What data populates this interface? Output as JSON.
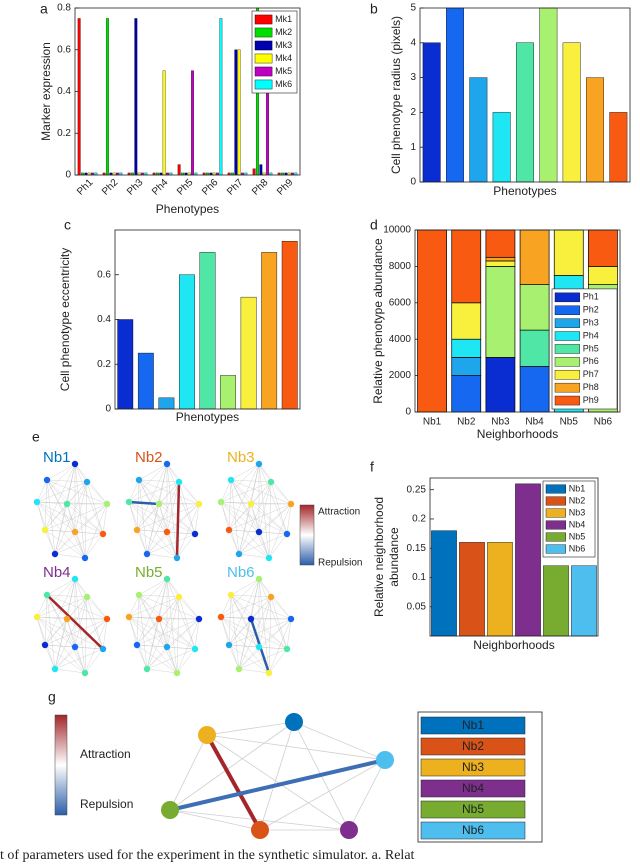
{
  "chart_data": [
    {
      "type": "bar",
      "ylabel": "Marker expression",
      "xlabel": "Phenotypes",
      "categories": [
        "Ph1",
        "Ph2",
        "Ph3",
        "Ph4",
        "Ph5",
        "Ph6",
        "Ph7",
        "Ph8",
        "Ph9"
      ],
      "series": [
        {
          "name": "Mk1",
          "color": "#ff0000",
          "values": [
            0.75,
            0.01,
            0.01,
            0.01,
            0.05,
            0.01,
            0.01,
            0.03,
            0.01
          ]
        },
        {
          "name": "Mk2",
          "color": "#00e000",
          "values": [
            0.01,
            0.75,
            0.01,
            0.01,
            0.01,
            0.01,
            0.01,
            0.8,
            0.01
          ]
        },
        {
          "name": "Mk3",
          "color": "#0000b0",
          "values": [
            0.01,
            0.01,
            0.75,
            0.01,
            0.01,
            0.01,
            0.6,
            0.05,
            0.01
          ]
        },
        {
          "name": "Mk4",
          "color": "#ffff00",
          "values": [
            0.01,
            0.01,
            0.01,
            0.5,
            0.01,
            0.01,
            0.6,
            0.01,
            0.01
          ]
        },
        {
          "name": "Mk5",
          "color": "#c000c0",
          "values": [
            0.01,
            0.01,
            0.01,
            0.01,
            0.5,
            0.01,
            0.01,
            0.75,
            0.01
          ]
        },
        {
          "name": "Mk6",
          "color": "#00ffff",
          "values": [
            0.01,
            0.01,
            0.01,
            0.01,
            0.01,
            0.75,
            0.01,
            0.01,
            0.01
          ]
        }
      ],
      "ylim": [
        0,
        0.8
      ],
      "yticks": [
        0,
        0.2,
        0.4,
        0.6,
        0.8
      ],
      "legend": "upper right"
    },
    {
      "type": "bar",
      "ylabel": "Cell phenotype radius (pixels)",
      "xlabel": "Phenotypes",
      "values": [
        4,
        5,
        3,
        2,
        4,
        5,
        4,
        3,
        2
      ],
      "colors": [
        "#0a2dd2",
        "#1668f0",
        "#1ea5ec",
        "#1ee6f2",
        "#50e6a5",
        "#a8f070",
        "#f8f03c",
        "#f8a422",
        "#f85a12"
      ],
      "ylim": [
        0,
        5
      ],
      "yticks": [
        0,
        1,
        2,
        3,
        4,
        5
      ]
    },
    {
      "type": "bar",
      "ylabel": "Cell phenotype eccentricity",
      "xlabel": "Phenotypes",
      "values": [
        0.4,
        0.25,
        0.05,
        0.6,
        0.7,
        0.15,
        0.5,
        0.7,
        0.75
      ],
      "colors": [
        "#0a2dd2",
        "#1668f0",
        "#1ea5ec",
        "#1ee6f2",
        "#50e6a5",
        "#a8f070",
        "#f8f03c",
        "#f8a422",
        "#f85a12"
      ],
      "ylim": [
        0,
        0.8
      ],
      "yticks": [
        0,
        0.2,
        0.4,
        0.6
      ]
    },
    {
      "type": "bar",
      "stacked": true,
      "ylabel": "Relative phenotype abundance",
      "xlabel": "Neighborhoods",
      "categories": [
        "Nb1",
        "Nb2",
        "Nb3",
        "Nb4",
        "Nb5",
        "Nb6"
      ],
      "series": [
        {
          "name": "Ph1",
          "color": "#0a2dd2",
          "values": [
            0,
            0,
            3000,
            0,
            0,
            0
          ]
        },
        {
          "name": "Ph2",
          "color": "#1668f0",
          "values": [
            0,
            2000,
            0,
            2500,
            0,
            0
          ]
        },
        {
          "name": "Ph3",
          "color": "#1ea5ec",
          "values": [
            0,
            1000,
            0,
            0,
            0,
            0
          ]
        },
        {
          "name": "Ph4",
          "color": "#1ee6f2",
          "values": [
            0,
            1000,
            0,
            0,
            7500,
            0
          ]
        },
        {
          "name": "Ph5",
          "color": "#50e6a5",
          "values": [
            0,
            0,
            0,
            2000,
            0,
            0
          ]
        },
        {
          "name": "Ph6",
          "color": "#a8f070",
          "values": [
            0,
            0,
            5000,
            2500,
            0,
            7000
          ]
        },
        {
          "name": "Ph7",
          "color": "#f8f03c",
          "values": [
            0,
            2000,
            300,
            0,
            2500,
            1000
          ]
        },
        {
          "name": "Ph8",
          "color": "#f8a422",
          "values": [
            0,
            0,
            200,
            3000,
            0,
            0
          ]
        },
        {
          "name": "Ph9",
          "color": "#f85a12",
          "values": [
            10000,
            4000,
            1500,
            0,
            0,
            2000
          ]
        }
      ],
      "ylim": [
        0,
        10000
      ],
      "yticks": [
        0,
        2000,
        4000,
        6000,
        8000,
        10000
      ],
      "legend": "lower right"
    },
    {
      "type": "bar",
      "ylabel": [
        "Relative neighborhood",
        "abundance"
      ],
      "xlabel": "Neighborhoods",
      "values": [
        0.18,
        0.16,
        0.16,
        0.26,
        0.12,
        0.12
      ],
      "colors": [
        "#0072bd",
        "#d95319",
        "#edb120",
        "#7e2f8e",
        "#77ac30",
        "#4dbeee"
      ],
      "legend_labels": [
        "Nb1",
        "Nb2",
        "Nb3",
        "Nb4",
        "Nb5",
        "Nb6"
      ],
      "ylim": [
        0,
        0.27
      ],
      "yticks": [
        0.05,
        0.1,
        0.15,
        0.2,
        0.25
      ],
      "legend": "upper right"
    }
  ],
  "panel_labels": [
    "a",
    "b",
    "c",
    "d",
    "e",
    "f",
    "g"
  ],
  "network_e": {
    "titles": [
      "Nb1",
      "Nb2",
      "Nb3",
      "Nb4",
      "Nb5",
      "Nb6"
    ],
    "colorbar": [
      "Attraction",
      "Repulsion"
    ]
  },
  "network_g": {
    "legend": [
      "Nb1",
      "Nb2",
      "Nb3",
      "Nb4",
      "Nb5",
      "Nb6"
    ],
    "colorbar": [
      "Attraction",
      "Repulsion"
    ]
  },
  "caption": "t of parameters used for the experiment in the synthetic simulator. a. Relat"
}
